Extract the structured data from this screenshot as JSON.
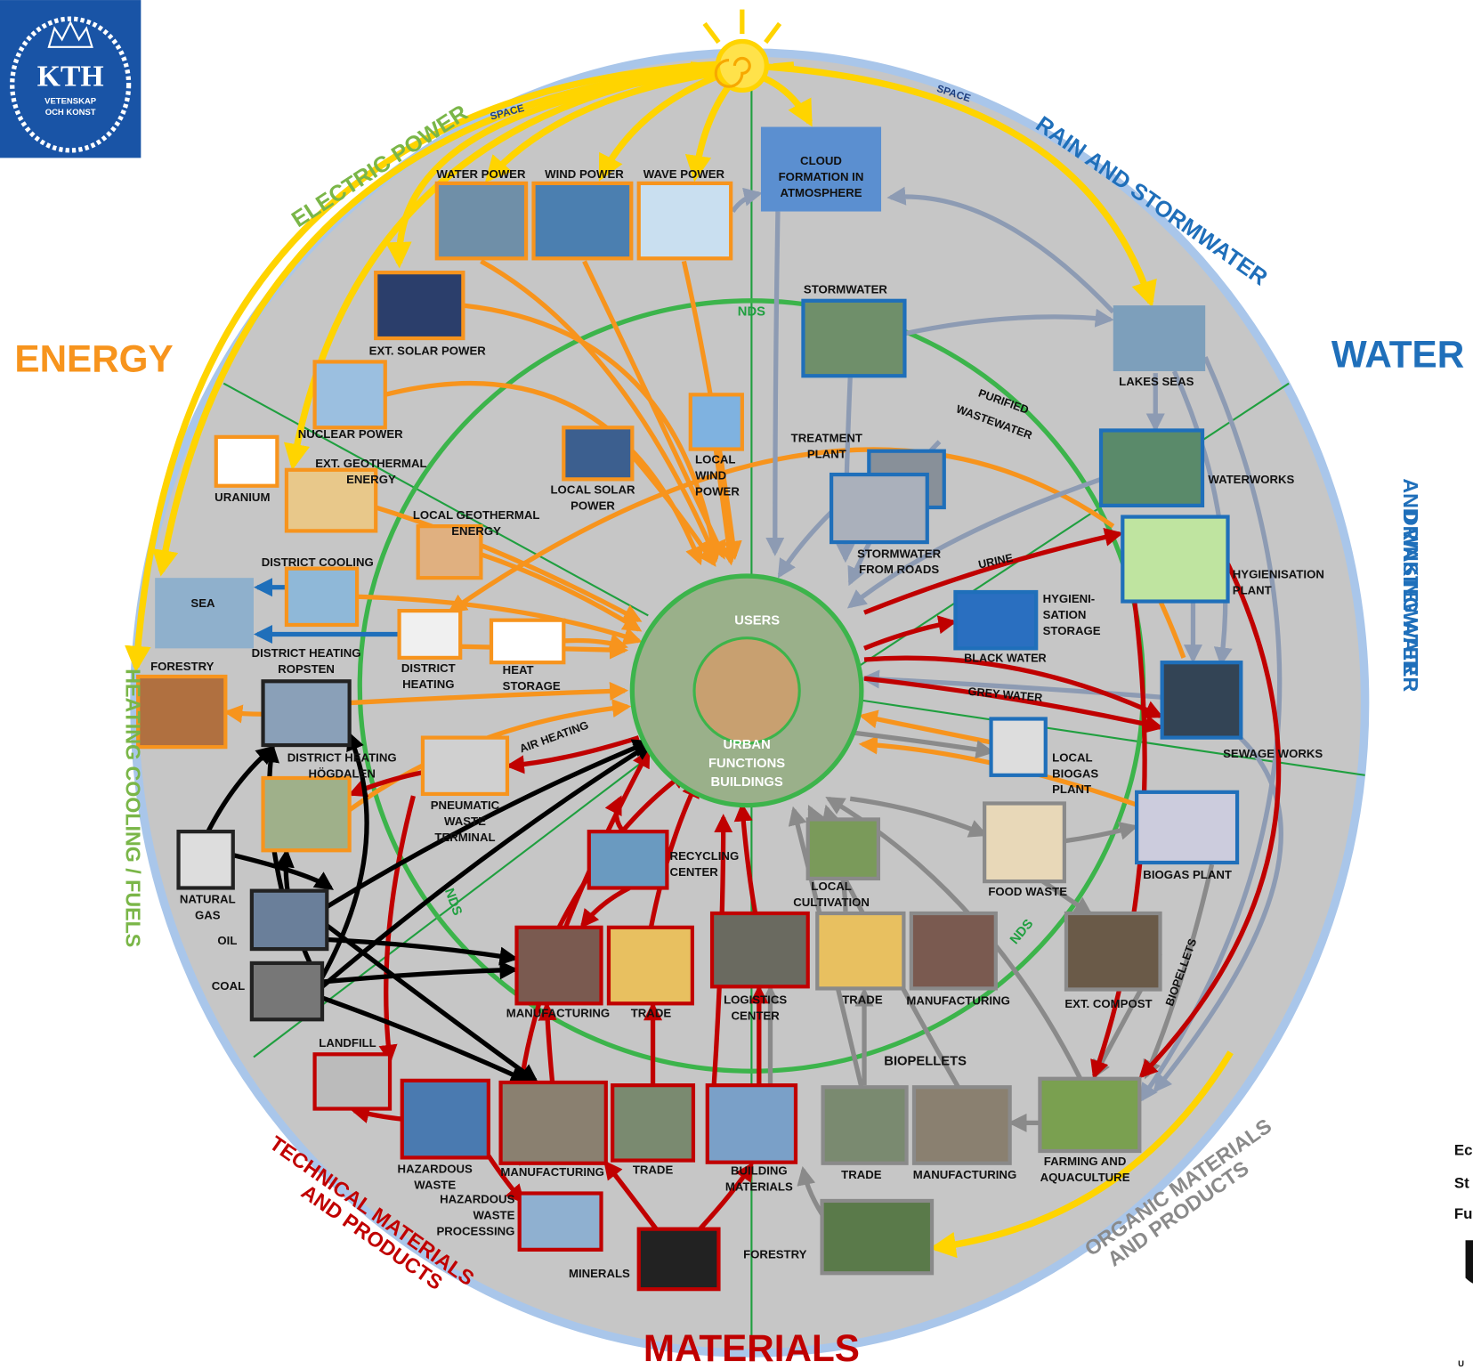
{
  "logo": {
    "name": "KTH",
    "line1": "VETENSKAP",
    "line2": "OCH KONST"
  },
  "sections": {
    "energy": "ENERGY",
    "water": "WATER",
    "materials": "MATERIALS"
  },
  "arcs": {
    "electric_power": [
      "ELECTRIC POWER"
    ],
    "rain": [
      "RAIN AND STORMWATER"
    ],
    "drinking": [
      "DRINKING WATER",
      "AND WASTEWATER"
    ],
    "heating": [
      "HEATING COOLING / FUELS"
    ],
    "technical": [
      "TECHNICAL MATERIALS",
      "AND PRODUCTS"
    ],
    "organic": [
      "ORGANIC MATERIALS",
      "AND PRODUCTS"
    ]
  },
  "space": [
    "SPACE",
    "SPACE"
  ],
  "nds": [
    "NDS",
    "NDS",
    "NDS"
  ],
  "center": {
    "users": "USERS",
    "urban": [
      "URBAN",
      "FUNCTIONS",
      "BUILDINGS"
    ]
  },
  "flows": [
    "PURIFIED",
    "WASTEWATER",
    "URINE",
    "BLACK WATER",
    "GREY WATER",
    "AIR HEATING",
    "BIOPELLETS",
    "BIOPELLETS"
  ],
  "nodes": [
    {
      "label": [
        "WATER POWER"
      ]
    },
    {
      "label": [
        "WIND POWER"
      ]
    },
    {
      "label": [
        "WAVE POWER"
      ]
    },
    {
      "label": [
        "CLOUD",
        "FORMATION IN",
        "ATMOSPHERE"
      ]
    },
    {
      "label": [
        "EXT. SOLAR POWER"
      ]
    },
    {
      "label": [
        "NUCLEAR POWER"
      ]
    },
    {
      "label": [
        "URANIUM"
      ]
    },
    {
      "label": [
        "EXT. GEOTHERMAL",
        "ENERGY"
      ]
    },
    {
      "label": [
        "LOCAL SOLAR",
        "POWER"
      ]
    },
    {
      "label": [
        "LOCAL",
        "WIND",
        "POWER"
      ]
    },
    {
      "label": [
        "LOCAL GEOTHERMAL",
        "ENERGY"
      ]
    },
    {
      "label": [
        "DISTRICT COOLING"
      ]
    },
    {
      "label": [
        "SEA"
      ]
    },
    {
      "label": [
        "DISTRICT",
        "HEATING"
      ]
    },
    {
      "label": [
        "HEAT",
        "STORAGE"
      ]
    },
    {
      "label": [
        "FORESTRY"
      ]
    },
    {
      "label": [
        "DISTRICT HEATING",
        "ROPSTEN"
      ]
    },
    {
      "label": [
        "DISTRICT HEATING",
        "HÖGDALEN"
      ]
    },
    {
      "label": [
        "PNEUMATIC",
        "WASTE",
        "TERMINAL"
      ]
    },
    {
      "label": [
        "NATURAL",
        "GAS"
      ]
    },
    {
      "label": [
        "OIL"
      ]
    },
    {
      "label": [
        "COAL"
      ]
    },
    {
      "label": [
        "STORMWATER"
      ]
    },
    {
      "label": [
        "LAKES SEAS"
      ]
    },
    {
      "label": [
        "TREATMENT",
        "PLANT"
      ]
    },
    {
      "label": [
        "STORMWATER",
        "FROM ROADS"
      ]
    },
    {
      "label": [
        "WATERWORKS"
      ]
    },
    {
      "label": [
        "HYGIENISATION",
        "PLANT"
      ]
    },
    {
      "label": [
        "HYGIENI-",
        "SATION",
        "STORAGE"
      ]
    },
    {
      "label": [
        "SEWAGE WORKS"
      ]
    },
    {
      "label": [
        "LOCAL",
        "BIOGAS",
        "PLANT"
      ]
    },
    {
      "label": [
        "BIOGAS PLANT"
      ]
    },
    {
      "label": [
        "FOOD WASTE"
      ]
    },
    {
      "label": [
        "LOCAL",
        "CULTIVATION"
      ]
    },
    {
      "label": [
        "RECYCLING",
        "CENTER"
      ]
    },
    {
      "label": [
        "MANUFACTURING"
      ]
    },
    {
      "label": [
        "TRADE"
      ]
    },
    {
      "label": [
        "LOGISTICS",
        "CENTER"
      ]
    },
    {
      "label": [
        "TRADE"
      ]
    },
    {
      "label": [
        "MANUFACTURING"
      ]
    },
    {
      "label": [
        "EXT. COMPOST"
      ]
    },
    {
      "label": [
        "LANDFILL"
      ]
    },
    {
      "label": [
        "HAZARDOUS",
        "WASTE"
      ]
    },
    {
      "label": [
        "MANUFACTURING"
      ]
    },
    {
      "label": [
        "TRADE"
      ]
    },
    {
      "label": [
        "BUILDING",
        "MATERIALS"
      ]
    },
    {
      "label": [
        "TRADE"
      ]
    },
    {
      "label": [
        "MANUFACTURING"
      ]
    },
    {
      "label": [
        "FARMING AND",
        "AQUACULTURE"
      ]
    },
    {
      "label": [
        "HAZARDOUS",
        "WASTE",
        "PROCESSING"
      ]
    },
    {
      "label": [
        "MINERALS"
      ]
    },
    {
      "label": [
        "FORESTRY"
      ]
    }
  ],
  "sidebar": [
    "Ec",
    "St",
    "Fu",
    "U"
  ]
}
